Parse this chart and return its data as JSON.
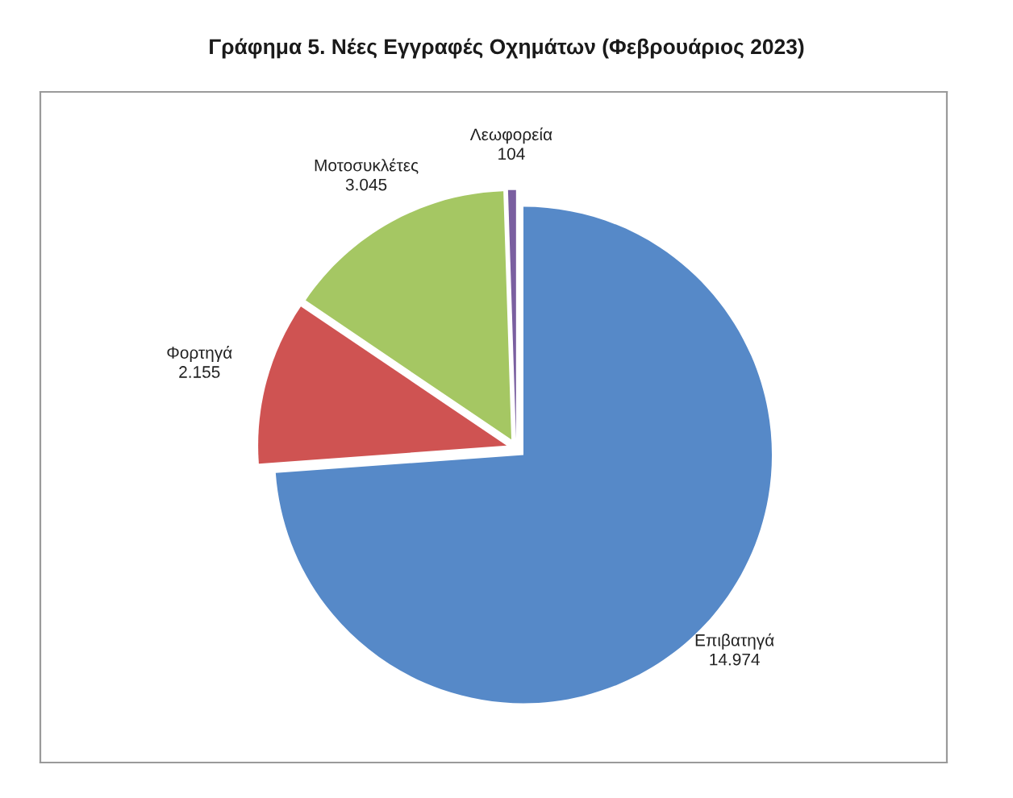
{
  "chart_data": {
    "type": "pie",
    "title": "Γράφημα 5. Νέες Εγγραφές Οχημάτων (Φεβρουάριος 2023)",
    "categories": [
      "Επιβατηγά",
      "Φορτηγά",
      "Μοτοσυκλέτες",
      "Λεωφορεία"
    ],
    "values": [
      14974,
      2155,
      3045,
      104
    ],
    "value_labels": [
      "14.974",
      "2.155",
      "3.045",
      "104"
    ],
    "colors": [
      "#5689c8",
      "#cf5352",
      "#a5c763",
      "#7a5fa0"
    ]
  }
}
